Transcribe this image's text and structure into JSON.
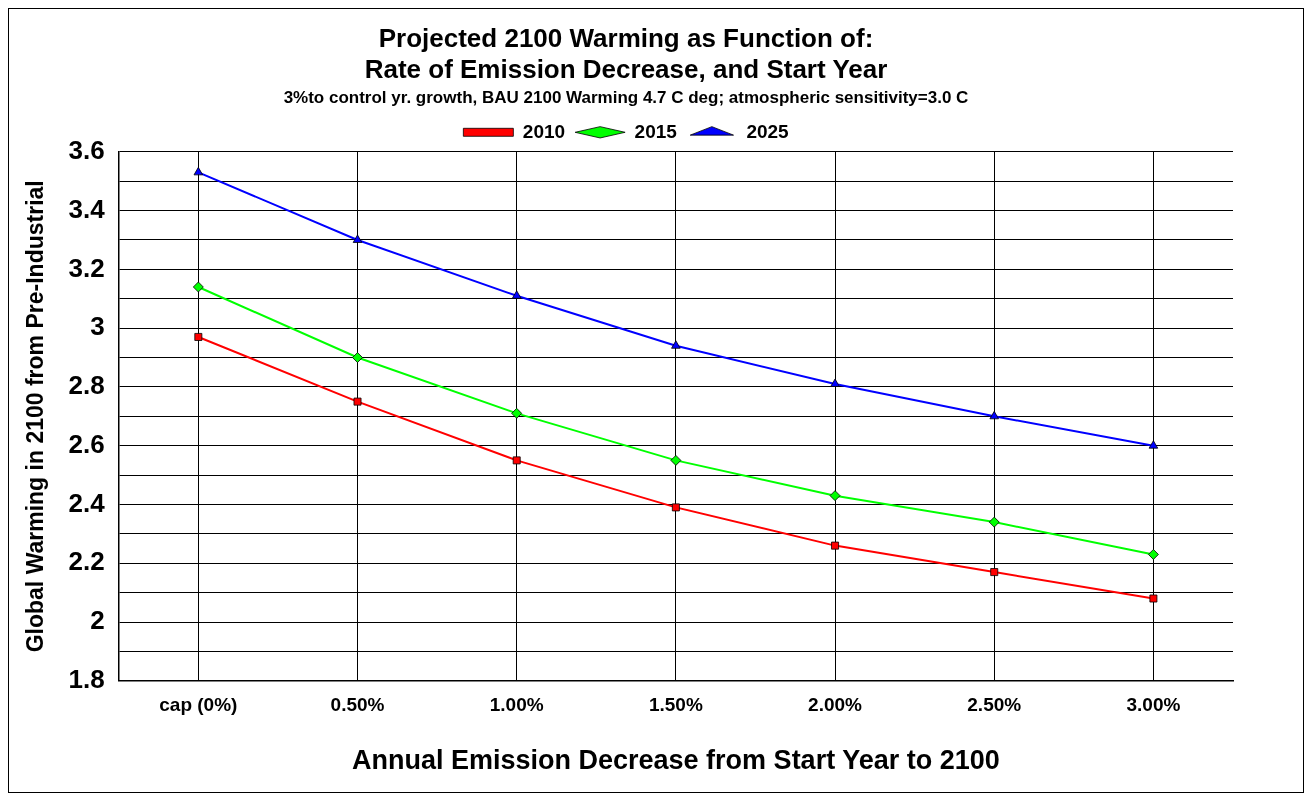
{
  "chart_data": {
    "type": "line",
    "title": "Projected 2100 Warming as Function of:\nRate of Emission Decrease, and Start Year",
    "subtitle": "3%to control yr. growth, BAU 2100 Warming 4.7 C deg; atmospheric sensitivity=3.0 C",
    "xlabel": "Annual Emission Decrease from Start Year to 2100",
    "ylabel": "Global Warming in 2100 from Pre-Industrial",
    "categories": [
      "cap (0%)",
      "0.50%",
      "1.00%",
      "1.50%",
      "2.00%",
      "2.50%",
      "3.00%"
    ],
    "series": [
      {
        "name": "2010",
        "color": "#ff0000",
        "marker": "square",
        "values": [
          2.97,
          2.75,
          2.55,
          2.39,
          2.26,
          2.17,
          2.08
        ]
      },
      {
        "name": "2015",
        "color": "#00ff00",
        "marker": "diamond",
        "values": [
          3.14,
          2.9,
          2.71,
          2.55,
          2.43,
          2.34,
          2.23
        ]
      },
      {
        "name": "2025",
        "color": "#0000ff",
        "marker": "triangle",
        "values": [
          3.53,
          3.3,
          3.11,
          2.94,
          2.81,
          2.7,
          2.6
        ]
      }
    ],
    "ylim": [
      1.8,
      3.6
    ],
    "yticks": [
      1.8,
      {
        "value": 1.9,
        "label": null
      },
      2,
      {
        "value": 2.1,
        "label": null
      },
      2.2,
      {
        "value": 2.3,
        "label": null
      },
      2.4,
      {
        "value": 2.5,
        "label": null
      },
      2.6,
      {
        "value": 2.7,
        "label": null
      },
      2.8,
      {
        "value": 2.9,
        "label": null
      },
      3,
      {
        "value": 3.1,
        "label": null
      },
      3.2,
      {
        "value": 3.3,
        "label": null
      },
      3.4,
      {
        "value": 3.5,
        "label": null
      },
      3.6
    ],
    "grid": true,
    "legend": "top",
    "line_style": "solid"
  }
}
